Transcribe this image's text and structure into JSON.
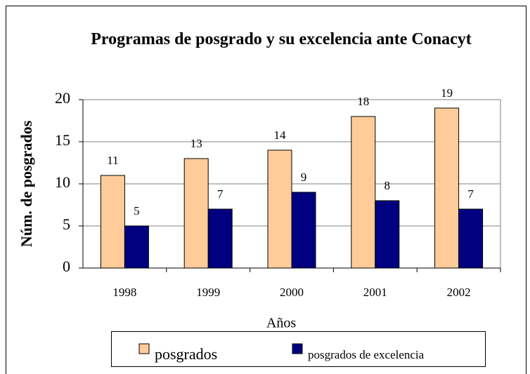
{
  "chart_data": {
    "type": "bar",
    "title": "Programas de posgrado y su excelencia ante Conacyt",
    "x_label": "Años",
    "y_label": "Núm. de posgrados",
    "categories": [
      "1998",
      "1999",
      "2000",
      "2001",
      "2002"
    ],
    "series": [
      {
        "name": "posgrados",
        "color": "#ffcc99",
        "values": [
          11,
          13,
          14,
          18,
          19
        ]
      },
      {
        "name": "posgrados de excelencia",
        "color": "#000080",
        "values": [
          5,
          7,
          9,
          8,
          7
        ]
      }
    ],
    "ylim": [
      0,
      20
    ],
    "yticks": [
      0,
      5,
      10,
      15,
      20
    ],
    "grid": true,
    "legend": "bottom"
  }
}
